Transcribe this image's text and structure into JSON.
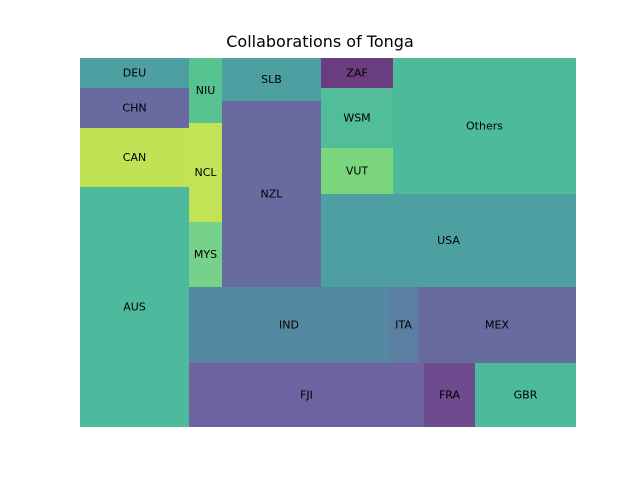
{
  "chart_data": {
    "type": "treemap",
    "title": "Collaborations of Tonga",
    "cells": [
      {
        "label": "DEU",
        "color": "#4e9fa2"
      },
      {
        "label": "CHN",
        "color": "#676ba0"
      },
      {
        "label": "CAN",
        "color": "#c2e255"
      },
      {
        "label": "AUS",
        "color": "#4dba9d"
      },
      {
        "label": "NIU",
        "color": "#57c391"
      },
      {
        "label": "NCL",
        "color": "#c3e356"
      },
      {
        "label": "MYS",
        "color": "#76d18b"
      },
      {
        "label": "SLB",
        "color": "#4e9fa2"
      },
      {
        "label": "NZL",
        "color": "#676ba0"
      },
      {
        "label": "ZAF",
        "color": "#6a3d81"
      },
      {
        "label": "WSM",
        "color": "#51bd99"
      },
      {
        "label": "VUT",
        "color": "#7ad57c"
      },
      {
        "label": "Others",
        "color": "#4dbb9b"
      },
      {
        "label": "USA",
        "color": "#4e9fa2"
      },
      {
        "label": "IND",
        "color": "#5589a2"
      },
      {
        "label": "ITA",
        "color": "#5b7ea2"
      },
      {
        "label": "MEX",
        "color": "#676ba0"
      },
      {
        "label": "FJI",
        "color": "#6c64a0"
      },
      {
        "label": "FRA",
        "color": "#6e4a8e"
      },
      {
        "label": "GBR",
        "color": "#4dbb9b"
      }
    ]
  }
}
